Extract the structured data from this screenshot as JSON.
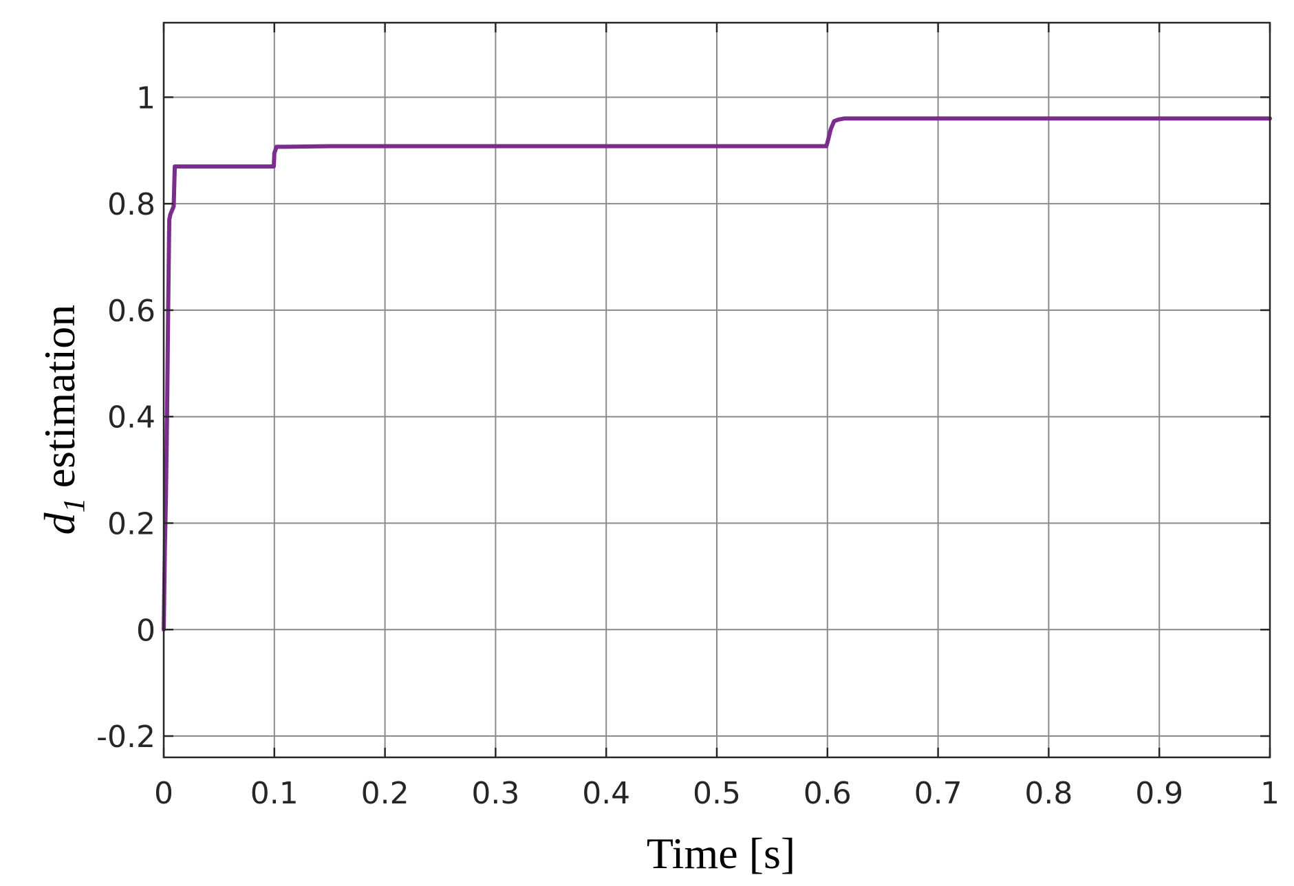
{
  "chart_data": {
    "type": "line",
    "xlabel": "Time [s]",
    "ylabel": {
      "symbol": "d",
      "subscript": "1",
      "text": "estimation"
    },
    "xlim": [
      0,
      1
    ],
    "ylim": [
      -0.24,
      1.14
    ],
    "xticks": [
      0,
      0.1,
      0.2,
      0.3,
      0.4,
      0.5,
      0.6,
      0.7,
      0.8,
      0.9,
      1
    ],
    "xtick_labels": [
      "0",
      "0.1",
      "0.2",
      "0.3",
      "0.4",
      "0.5",
      "0.6",
      "0.7",
      "0.8",
      "0.9",
      "1"
    ],
    "yticks": [
      -0.2,
      0,
      0.2,
      0.4,
      0.6,
      0.8,
      1
    ],
    "ytick_labels": [
      "-0.2",
      "0",
      "0.2",
      "0.4",
      "0.6",
      "0.8",
      "1"
    ],
    "grid": true,
    "series": [
      {
        "color": "#7B2D8E",
        "x": [
          0,
          0.001,
          0.002,
          0.003,
          0.004,
          0.005,
          0.006,
          0.007,
          0.008,
          0.009,
          0.01,
          0.0105,
          0.0995,
          0.1,
          0.102,
          0.11,
          0.15,
          0.2,
          0.3,
          0.4,
          0.5,
          0.599,
          0.6,
          0.603,
          0.606,
          0.61,
          0.615,
          0.62,
          0.7,
          0.8,
          0.9,
          1
        ],
        "y": [
          0,
          0.15,
          0.25,
          0.4,
          0.6,
          0.77,
          0.78,
          0.785,
          0.79,
          0.795,
          0.87,
          0.87,
          0.87,
          0.895,
          0.907,
          0.907,
          0.908,
          0.908,
          0.908,
          0.908,
          0.908,
          0.908,
          0.915,
          0.94,
          0.955,
          0.958,
          0.96,
          0.96,
          0.96,
          0.96,
          0.96,
          0.96
        ]
      }
    ]
  }
}
